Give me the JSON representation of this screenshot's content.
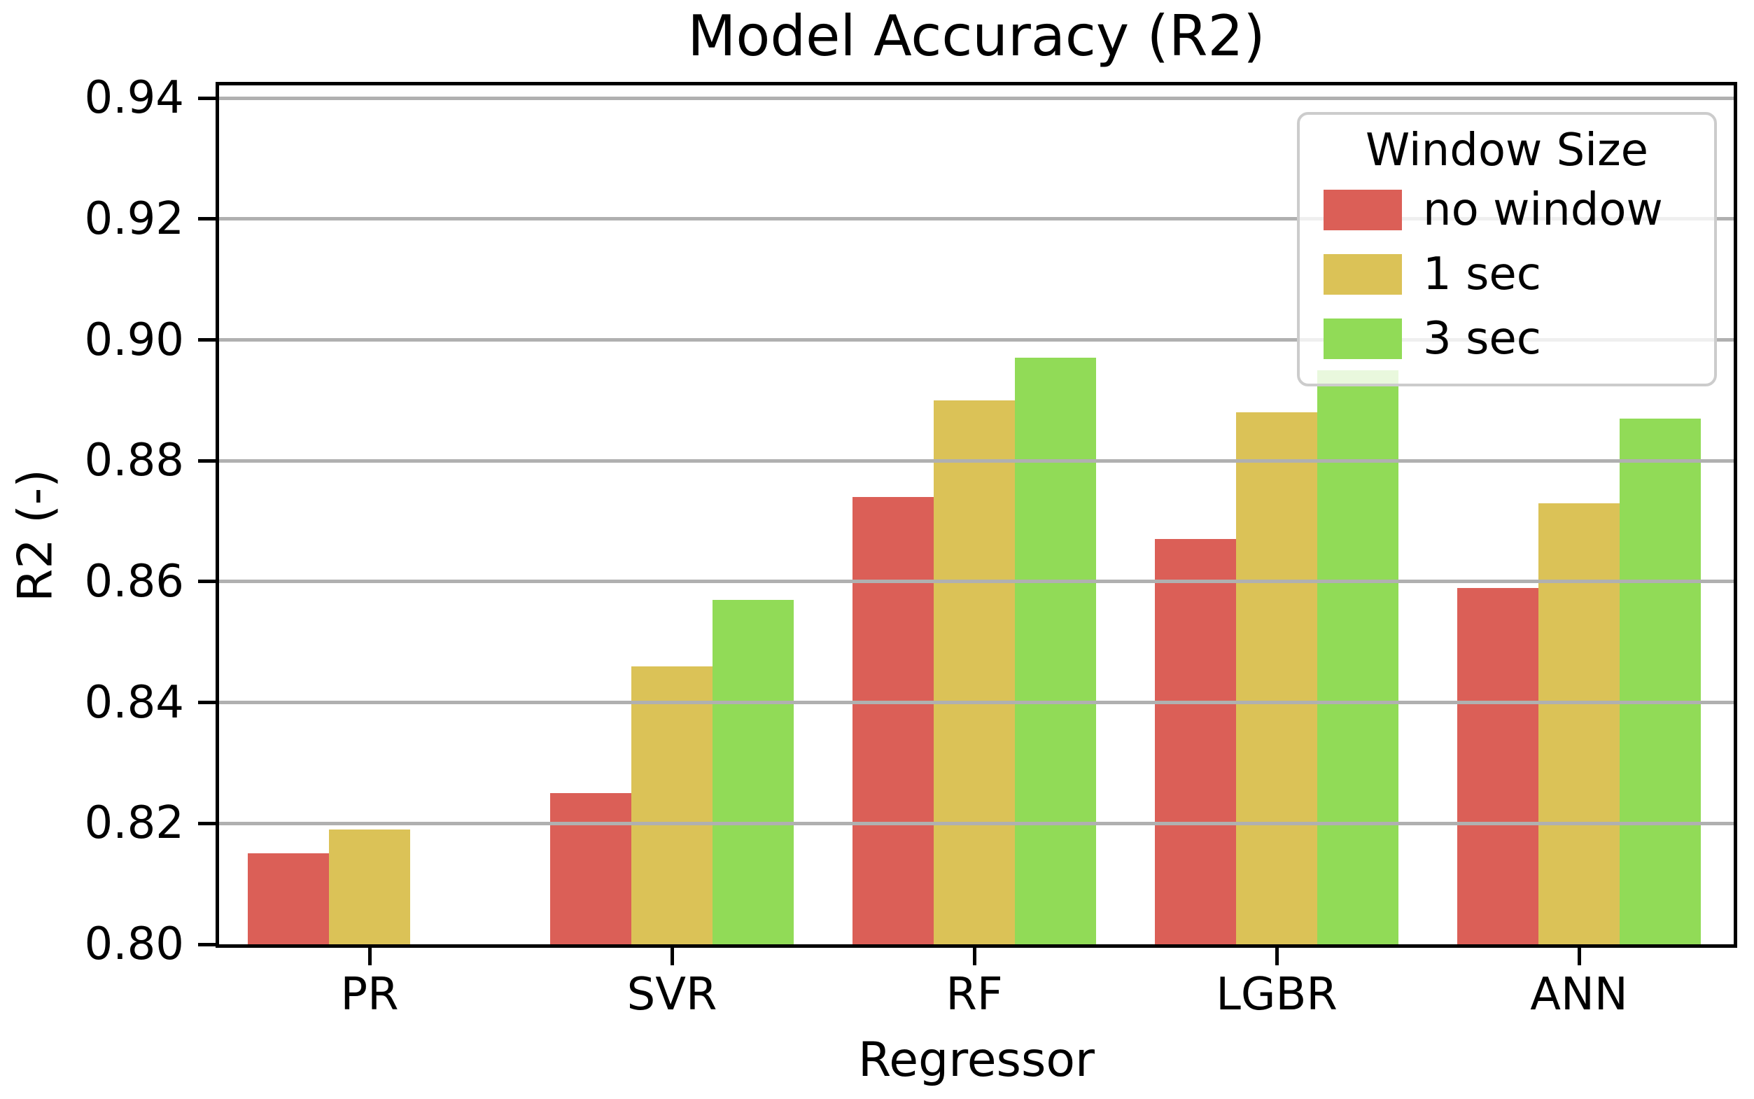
{
  "title": "Model Accuracy (R2)",
  "axes": {
    "xlabel": "Regressor",
    "ylabel": "R2 (-)",
    "y_ticks": [
      "0.94",
      "0.92",
      "0.90",
      "0.88",
      "0.86",
      "0.84",
      "0.82",
      "0.80"
    ]
  },
  "legend": {
    "title": "Window Size",
    "entries": [
      {
        "label": "no window",
        "color": "#db5f57"
      },
      {
        "label": "1 sec",
        "color": "#dbc257"
      },
      {
        "label": "3 sec",
        "color": "#91db57"
      }
    ]
  },
  "colors": {
    "grid": "#b0b0b0",
    "spine": "#000000",
    "legend_border": "#cccccc"
  },
  "chart_data": {
    "type": "bar",
    "title": "Model Accuracy (R2)",
    "xlabel": "Regressor",
    "ylabel": "R2 (-)",
    "categories": [
      "PR",
      "SVR",
      "RF",
      "LGBR",
      "ANN"
    ],
    "series": [
      {
        "name": "no window",
        "color": "#db5f57",
        "values": [
          0.815,
          0.825,
          0.874,
          0.867,
          0.859
        ]
      },
      {
        "name": "1 sec",
        "color": "#dbc257",
        "values": [
          0.819,
          0.846,
          0.89,
          0.888,
          0.873
        ]
      },
      {
        "name": "3 sec",
        "color": "#91db57",
        "values": [
          null,
          0.857,
          0.897,
          0.895,
          0.887
        ]
      }
    ],
    "ylim": [
      0.8,
      0.9421
    ],
    "ytick_interval": 0.02,
    "grid": {
      "axis": "y",
      "color": "#b0b0b0",
      "over_bars": true
    },
    "legend_position": "upper right"
  }
}
